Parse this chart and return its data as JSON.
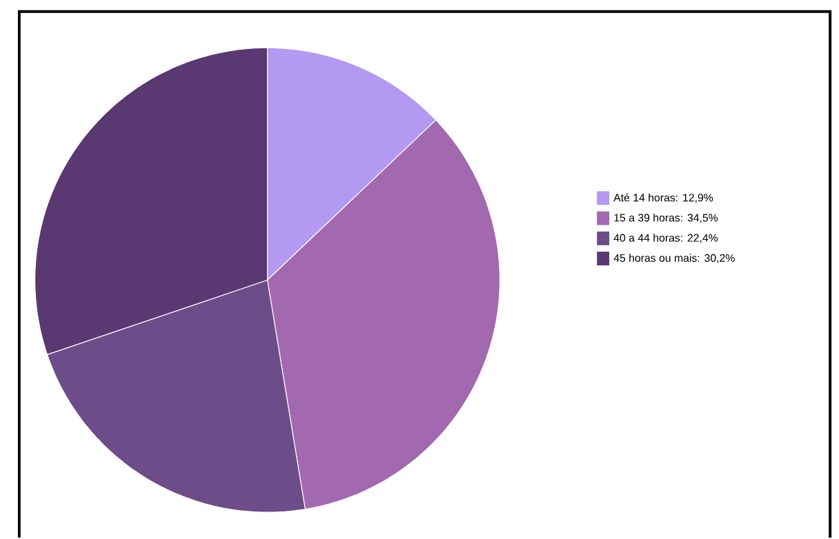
{
  "chart_data": {
    "type": "pie",
    "categories": [
      "Até 14 horas: 12,9%",
      "15 a 39 horas: 34,5%",
      "40 a 44 horas: 22,4%",
      "45 horas ou mais: 30,2%"
    ],
    "values": [
      12.9,
      34.5,
      22.4,
      30.2
    ],
    "colors": [
      "#b399f2",
      "#a268b0",
      "#6d4c8a",
      "#5a3872"
    ],
    "legend": "right"
  }
}
